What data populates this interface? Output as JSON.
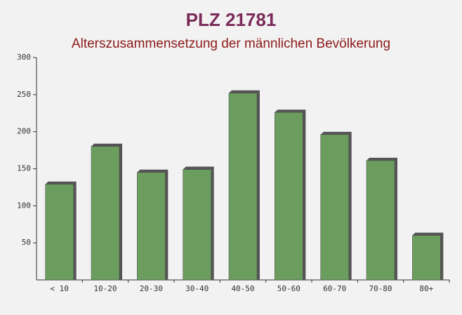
{
  "chart_data": {
    "type": "bar",
    "title": "PLZ 21781",
    "subtitle": "Alterszusammensetzung der männlichen Bevölkerung",
    "categories": [
      "< 10",
      "10-20",
      "20-30",
      "30-40",
      "40-50",
      "50-60",
      "60-70",
      "70-80",
      "80+"
    ],
    "values": [
      129,
      180,
      145,
      149,
      252,
      226,
      196,
      161,
      60
    ],
    "color": "#6b9e5e",
    "ylim": [
      0,
      300
    ],
    "yticks": [
      50,
      100,
      150,
      200,
      250,
      300
    ],
    "grid": false
  }
}
